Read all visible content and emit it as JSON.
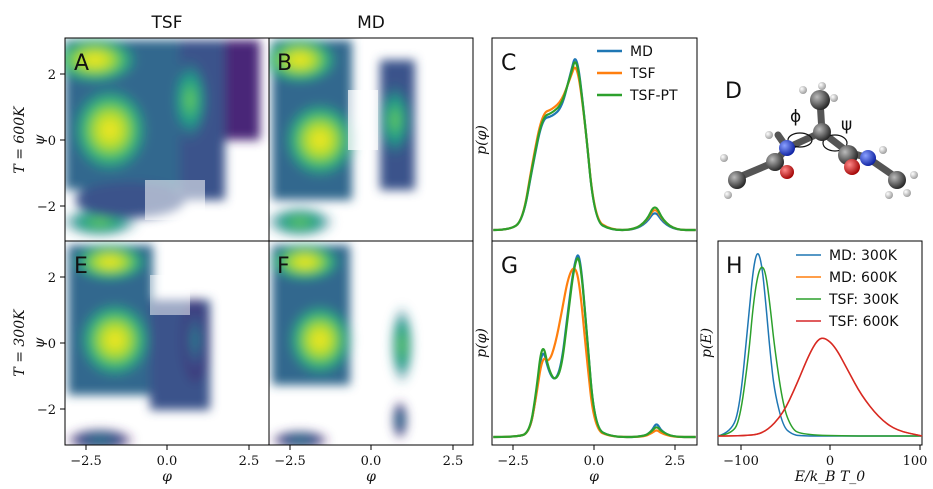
{
  "col_titles": [
    "TSF",
    "MD"
  ],
  "row_labels": [
    "T = 600K",
    "T = 300K"
  ],
  "psi_label": "ψ",
  "phi_label": "φ",
  "panels": {
    "A": "A",
    "B": "B",
    "C": "C",
    "D": "D",
    "E": "E",
    "F": "F",
    "G": "G",
    "H": "H"
  },
  "molecule_labels": {
    "phi": "ϕ",
    "psi": "ψ"
  },
  "colors": {
    "md": "#1f77b4",
    "tsf": "#ff7f0e",
    "tsf_pt": "#2ca02c",
    "red": "#d62728",
    "viridis_low": "#440154",
    "viridis_high": "#fde725"
  },
  "chart_data": [
    {
      "type": "heatmap",
      "panel": "A",
      "title": "TSF",
      "ylabel": "T = 600K   ψ",
      "xlim": [
        -3.14,
        3.14
      ],
      "ylim": [
        -3.14,
        3.14
      ],
      "yticks": [
        "−2",
        "0",
        "2"
      ],
      "note": "Ramachandran density, TSF at 600K"
    },
    {
      "type": "heatmap",
      "panel": "B",
      "title": "MD",
      "xlim": [
        -3.14,
        3.14
      ],
      "ylim": [
        -3.14,
        3.14
      ],
      "note": "Ramachandran density, MD at 600K"
    },
    {
      "type": "heatmap",
      "panel": "E",
      "ylabel": "T = 300K   ψ",
      "xlabel": "φ",
      "xlim": [
        -3.14,
        3.14
      ],
      "ylim": [
        -3.14,
        3.14
      ],
      "xticks": [
        "−2.5",
        "0.0",
        "2.5"
      ],
      "yticks": [
        "−2",
        "0",
        "2"
      ],
      "note": "Ramachandran density, TSF at 300K"
    },
    {
      "type": "heatmap",
      "panel": "F",
      "xlabel": "φ",
      "xlim": [
        -3.14,
        3.14
      ],
      "ylim": [
        -3.14,
        3.14
      ],
      "xticks": [
        "−2.5",
        "0.0",
        "2.5"
      ],
      "note": "Ramachandran density, MD at 300K"
    },
    {
      "type": "line",
      "panel": "C",
      "ylabel": "p(φ)",
      "xlim": [
        -3.14,
        3.14
      ],
      "series": [
        {
          "name": "MD",
          "x": [
            -3.1,
            -2.6,
            -2.2,
            -1.9,
            -1.6,
            -1.3,
            -1.0,
            -0.75,
            -0.55,
            -0.3,
            0.0,
            0.5,
            1.2,
            1.6,
            1.85,
            2.1,
            2.5,
            3.1
          ],
          "y": [
            0.0,
            0.0,
            0.05,
            0.35,
            0.62,
            0.63,
            0.68,
            0.86,
            1.0,
            0.62,
            0.05,
            0.0,
            0.0,
            0.04,
            0.11,
            0.04,
            0.0,
            0.0
          ]
        },
        {
          "name": "TSF",
          "x": [
            -3.1,
            -2.6,
            -2.2,
            -1.9,
            -1.6,
            -1.3,
            -1.0,
            -0.75,
            -0.55,
            -0.3,
            0.0,
            0.5,
            1.2,
            1.6,
            1.85,
            2.1,
            2.5,
            3.1
          ],
          "y": [
            0.0,
            0.0,
            0.05,
            0.38,
            0.65,
            0.67,
            0.72,
            0.84,
            0.94,
            0.62,
            0.06,
            0.0,
            0.0,
            0.05,
            0.13,
            0.05,
            0.0,
            0.0
          ]
        },
        {
          "name": "TSF-PT",
          "x": [
            -3.1,
            -2.6,
            -2.2,
            -1.9,
            -1.6,
            -1.3,
            -1.0,
            -0.75,
            -0.55,
            -0.3,
            0.0,
            0.5,
            1.2,
            1.6,
            1.85,
            2.1,
            2.5,
            3.1
          ],
          "y": [
            0.0,
            0.0,
            0.05,
            0.36,
            0.63,
            0.65,
            0.7,
            0.85,
            0.98,
            0.62,
            0.05,
            0.0,
            0.0,
            0.05,
            0.15,
            0.05,
            0.0,
            0.0
          ]
        }
      ],
      "legend": "top-right"
    },
    {
      "type": "line",
      "panel": "G",
      "ylabel": "p(φ)",
      "xlabel": "φ",
      "xlim": [
        -3.14,
        3.14
      ],
      "xticks": [
        "−2.5",
        "0.0",
        "2.5"
      ],
      "series": [
        {
          "name": "MD",
          "x": [
            -3.1,
            -2.4,
            -2.0,
            -1.8,
            -1.6,
            -1.4,
            -1.2,
            -1.0,
            -0.8,
            -0.6,
            -0.45,
            -0.25,
            0.0,
            0.5,
            1.5,
            1.75,
            1.9,
            2.05,
            2.4,
            3.1
          ],
          "y": [
            0.0,
            0.0,
            0.02,
            0.2,
            0.5,
            0.35,
            0.3,
            0.4,
            0.7,
            0.96,
            1.0,
            0.6,
            0.05,
            0.0,
            0.0,
            0.03,
            0.08,
            0.03,
            0.0,
            0.0
          ]
        },
        {
          "name": "TSF",
          "x": [
            -3.1,
            -2.4,
            -2.0,
            -1.8,
            -1.6,
            -1.4,
            -1.2,
            -1.0,
            -0.8,
            -0.6,
            -0.45,
            -0.25,
            0.0,
            0.5,
            1.5,
            1.75,
            1.9,
            2.05,
            2.4,
            3.1
          ],
          "y": [
            0.0,
            0.0,
            0.02,
            0.2,
            0.44,
            0.4,
            0.5,
            0.68,
            0.87,
            0.93,
            0.82,
            0.45,
            0.04,
            0.0,
            0.0,
            0.02,
            0.04,
            0.02,
            0.0,
            0.0
          ]
        },
        {
          "name": "TSF-PT",
          "x": [
            -3.1,
            -2.4,
            -2.0,
            -1.8,
            -1.6,
            -1.4,
            -1.2,
            -1.0,
            -0.8,
            -0.6,
            -0.45,
            -0.25,
            0.0,
            0.5,
            1.5,
            1.75,
            1.9,
            2.05,
            2.4,
            3.1
          ],
          "y": [
            0.0,
            0.0,
            0.02,
            0.22,
            0.53,
            0.36,
            0.3,
            0.38,
            0.68,
            0.95,
            0.98,
            0.6,
            0.05,
            0.0,
            0.0,
            0.03,
            0.06,
            0.03,
            0.0,
            0.0
          ]
        }
      ]
    },
    {
      "type": "line",
      "panel": "H",
      "ylabel": "p(E)",
      "xlabel": "E/k_B T_0",
      "xlim": [
        -135,
        100
      ],
      "xticks": [
        "−100",
        "0",
        "100"
      ],
      "series": [
        {
          "name": "MD: 300K",
          "x": [
            -135,
            -120,
            -110,
            -100,
            -95,
            -90,
            -85,
            -80,
            -75,
            -70,
            -60,
            -50,
            -40,
            0,
            100
          ],
          "y": [
            0.0,
            0.02,
            0.15,
            0.62,
            0.88,
            1.0,
            0.94,
            0.72,
            0.45,
            0.24,
            0.05,
            0.01,
            0.0,
            0.0,
            0.0
          ]
        },
        {
          "name": "MD: 600K",
          "x": [
            -135,
            -100,
            -80,
            -60,
            -45,
            -30,
            -20,
            -12,
            0,
            15,
            30,
            50,
            70,
            100
          ],
          "y": [
            0.0,
            0.0,
            0.02,
            0.12,
            0.27,
            0.44,
            0.52,
            0.53,
            0.48,
            0.35,
            0.22,
            0.1,
            0.03,
            0.0
          ]
        },
        {
          "name": "TSF: 300K",
          "x": [
            -135,
            -120,
            -110,
            -100,
            -95,
            -90,
            -85,
            -80,
            -75,
            -70,
            -60,
            -50,
            -40,
            0,
            100
          ],
          "y": [
            0.0,
            0.01,
            0.08,
            0.42,
            0.68,
            0.85,
            0.92,
            0.88,
            0.7,
            0.48,
            0.16,
            0.04,
            0.01,
            0.0,
            0.0
          ]
        },
        {
          "name": "TSF: 600K",
          "x": [
            -135,
            -100,
            -80,
            -60,
            -45,
            -30,
            -20,
            -12,
            0,
            15,
            30,
            50,
            70,
            100
          ],
          "y": [
            0.0,
            0.0,
            0.02,
            0.12,
            0.27,
            0.44,
            0.52,
            0.53,
            0.48,
            0.35,
            0.22,
            0.1,
            0.03,
            0.0
          ]
        }
      ],
      "legend": "top-right"
    }
  ]
}
